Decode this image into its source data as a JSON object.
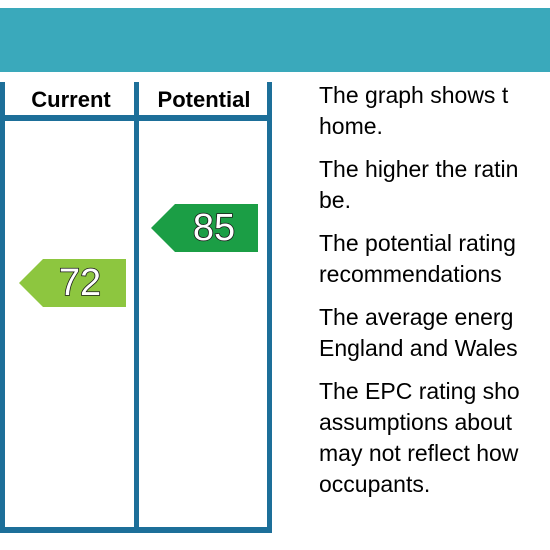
{
  "epc_graph": {
    "columns": {
      "current_label": "Current",
      "potential_label": "Potential"
    },
    "current_rating": {
      "value": "72",
      "color": "#8dc63f"
    },
    "potential_rating": {
      "value": "85",
      "color": "#1b9e45"
    },
    "colors": {
      "header_band": "#3aa9bb",
      "table_lines": "#1d6f99"
    }
  },
  "explanation": {
    "paragraphs": [
      "The graph shows t\nhome.",
      "The higher the ratin\nbe.",
      "The potential rating\nrecommendations",
      "The average energ\nEngland and Wales",
      "The EPC rating sho\nassumptions about\nmay not reflect how\noccupants."
    ]
  }
}
